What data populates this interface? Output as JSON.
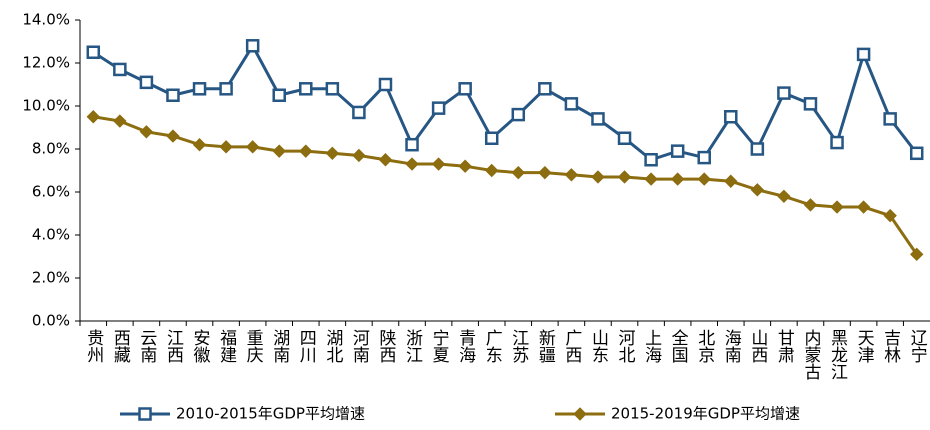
{
  "chart_data": {
    "type": "line",
    "categories": [
      "贵州",
      "西藏",
      "云南",
      "江西",
      "安徽",
      "福建",
      "重庆",
      "湖南",
      "四川",
      "湖北",
      "河南",
      "陕西",
      "浙江",
      "宁夏",
      "青海",
      "广东",
      "江苏",
      "新疆",
      "广西",
      "山东",
      "河北",
      "上海",
      "全国",
      "北京",
      "海南",
      "山西",
      "甘肃",
      "内蒙古",
      "黑龙江",
      "天津",
      "吉林",
      "辽宁"
    ],
    "series": [
      {
        "name": "2010-2015年GDP平均增速",
        "color": "#265683",
        "marker": "square",
        "values": [
          12.5,
          11.7,
          11.1,
          10.5,
          10.8,
          10.8,
          12.8,
          10.5,
          10.8,
          10.8,
          9.7,
          11.0,
          8.2,
          9.9,
          10.8,
          8.5,
          9.6,
          10.8,
          10.1,
          9.4,
          8.5,
          7.5,
          7.9,
          7.6,
          9.5,
          8.0,
          10.6,
          10.1,
          8.3,
          12.4,
          9.4,
          7.8
        ]
      },
      {
        "name": "2015-2019年GDP平均增速",
        "color": "#8c6d0f",
        "marker": "diamond",
        "values": [
          9.5,
          9.3,
          8.8,
          8.6,
          8.2,
          8.1,
          8.1,
          7.9,
          7.9,
          7.8,
          7.7,
          7.5,
          7.3,
          7.3,
          7.2,
          7.0,
          6.9,
          6.9,
          6.8,
          6.7,
          6.7,
          6.6,
          6.6,
          6.6,
          6.5,
          6.1,
          5.8,
          5.4,
          5.3,
          5.3,
          4.9,
          3.1
        ]
      }
    ],
    "ylim": [
      0,
      14
    ],
    "yticks": [
      {
        "value": 0,
        "label": "0.0%"
      },
      {
        "value": 2,
        "label": "2.0%"
      },
      {
        "value": 4,
        "label": "4.0%"
      },
      {
        "value": 6,
        "label": "6.0%"
      },
      {
        "value": 8,
        "label": "8.0%"
      },
      {
        "value": 10,
        "label": "10.0%"
      },
      {
        "value": 12,
        "label": "12.0%"
      },
      {
        "value": 14,
        "label": "14.0%"
      }
    ],
    "grid": false,
    "legend": "bottom"
  }
}
